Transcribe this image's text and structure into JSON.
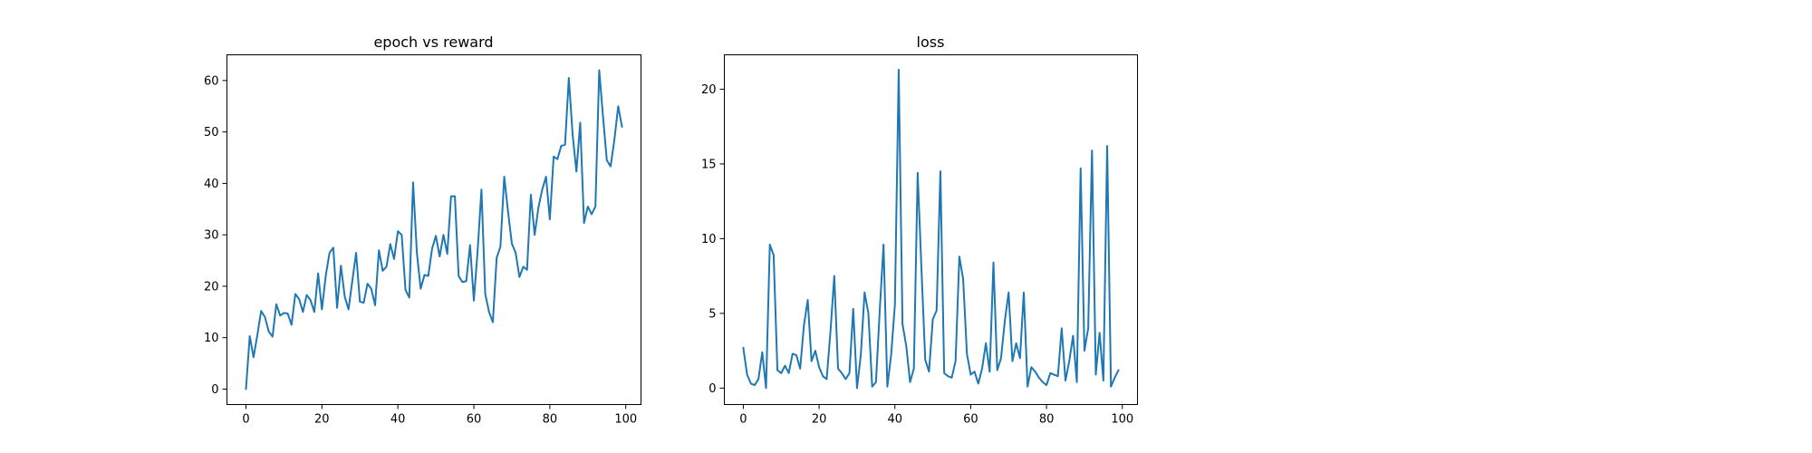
{
  "figure": {
    "background": "#ffffff",
    "line_color": "#1f77b4"
  },
  "chart_data": [
    {
      "type": "line",
      "title": "epoch vs reward",
      "xlabel": "",
      "ylabel": "",
      "xlim": [
        -5,
        104
      ],
      "ylim": [
        -3,
        65
      ],
      "xticks": [
        0,
        20,
        40,
        60,
        80,
        100
      ],
      "yticks": [
        0,
        10,
        20,
        30,
        40,
        50,
        60
      ],
      "grid": false,
      "series": [
        {
          "color": "#1f77b4",
          "x": [
            0,
            1,
            2,
            3,
            4,
            5,
            6,
            7,
            8,
            9,
            10,
            11,
            12,
            13,
            14,
            15,
            16,
            17,
            18,
            19,
            20,
            21,
            22,
            23,
            24,
            25,
            26,
            27,
            28,
            29,
            30,
            31,
            32,
            33,
            34,
            35,
            36,
            37,
            38,
            39,
            40,
            41,
            42,
            43,
            44,
            45,
            46,
            47,
            48,
            49,
            50,
            51,
            52,
            53,
            54,
            55,
            56,
            57,
            58,
            59,
            60,
            61,
            62,
            63,
            64,
            65,
            66,
            67,
            68,
            69,
            70,
            71,
            72,
            73,
            74,
            75,
            76,
            77,
            78,
            79,
            80,
            81,
            82,
            83,
            84,
            85,
            86,
            87,
            88,
            89,
            90,
            91,
            92,
            93,
            94,
            95,
            96,
            97,
            98,
            99
          ],
          "values": [
            0,
            10.3,
            6.2,
            10.5,
            15.2,
            14,
            11.2,
            10.2,
            16.5,
            14.3,
            14.8,
            14.7,
            12.5,
            18.5,
            17.5,
            15,
            18.3,
            17.3,
            15,
            22.5,
            15.5,
            22,
            26.5,
            27.5,
            15.8,
            24,
            18,
            15.5,
            21,
            26.5,
            17,
            16.8,
            20.5,
            19.5,
            16.3,
            27,
            23,
            23.8,
            28.2,
            25.3,
            30.7,
            30,
            19.3,
            17.8,
            40.2,
            26.5,
            19.5,
            22.2,
            22,
            27.3,
            29.8,
            25.8,
            30,
            26.3,
            37.5,
            37.5,
            22,
            20.8,
            21,
            28,
            17.2,
            27,
            38.8,
            18.5,
            15,
            13,
            25.5,
            27.7,
            41.3,
            34.5,
            28.3,
            26.5,
            21.8,
            23.8,
            23.2,
            37.8,
            30,
            35.3,
            38.8,
            41.3,
            33,
            45.2,
            44.7,
            47.3,
            47.5,
            60.5,
            49.5,
            42.3,
            51.8,
            32.3,
            35.5,
            34,
            35.5,
            62,
            53,
            44.5,
            43.3,
            48.5,
            55,
            51
          ]
        }
      ]
    },
    {
      "type": "line",
      "title": "loss",
      "xlabel": "",
      "ylabel": "",
      "xlim": [
        -5,
        104
      ],
      "ylim": [
        -1.1,
        22.3
      ],
      "xticks": [
        0,
        20,
        40,
        60,
        80,
        100
      ],
      "yticks": [
        0,
        5,
        10,
        15,
        20
      ],
      "grid": false,
      "series": [
        {
          "color": "#1f77b4",
          "x": [
            0,
            1,
            2,
            3,
            4,
            5,
            6,
            7,
            8,
            9,
            10,
            11,
            12,
            13,
            14,
            15,
            16,
            17,
            18,
            19,
            20,
            21,
            22,
            23,
            24,
            25,
            26,
            27,
            28,
            29,
            30,
            31,
            32,
            33,
            34,
            35,
            36,
            37,
            38,
            39,
            40,
            41,
            42,
            43,
            44,
            45,
            46,
            47,
            48,
            49,
            50,
            51,
            52,
            53,
            54,
            55,
            56,
            57,
            58,
            59,
            60,
            61,
            62,
            63,
            64,
            65,
            66,
            67,
            68,
            69,
            70,
            71,
            72,
            73,
            74,
            75,
            76,
            77,
            78,
            79,
            80,
            81,
            82,
            83,
            84,
            85,
            86,
            87,
            88,
            89,
            90,
            91,
            92,
            93,
            94,
            95,
            96,
            97,
            98,
            99
          ],
          "values": [
            2.7,
            0.9,
            0.3,
            0.2,
            0.6,
            2.4,
            0,
            9.6,
            8.9,
            1.2,
            1,
            1.5,
            1,
            2.3,
            2.2,
            1.3,
            4.2,
            5.9,
            1.8,
            2.5,
            1.4,
            0.8,
            0.6,
            3.8,
            7.5,
            1.3,
            1,
            0.6,
            1,
            5.3,
            0,
            2.2,
            6.4,
            5,
            0.1,
            0.4,
            5.2,
            9.6,
            0.1,
            2.2,
            5.6,
            21.3,
            4.3,
            2.8,
            0.4,
            1.3,
            14.4,
            8,
            1.9,
            1.1,
            4.6,
            5.2,
            14.5,
            1,
            0.8,
            0.7,
            1.8,
            8.8,
            7.3,
            2.3,
            0.9,
            1.1,
            0.3,
            1.3,
            3,
            1.1,
            8.4,
            1.2,
            2,
            4.5,
            6.4,
            1.8,
            3,
            2,
            6.4,
            0.1,
            1.4,
            1.1,
            0.7,
            0.4,
            0.2,
            1,
            0.9,
            0.8,
            4,
            0.5,
            1.8,
            3.5,
            0.4,
            14.7,
            2.5,
            4,
            15.9,
            0.9,
            3.7,
            0.5,
            16.2,
            0.1,
            0.7,
            1.2
          ]
        }
      ]
    }
  ]
}
